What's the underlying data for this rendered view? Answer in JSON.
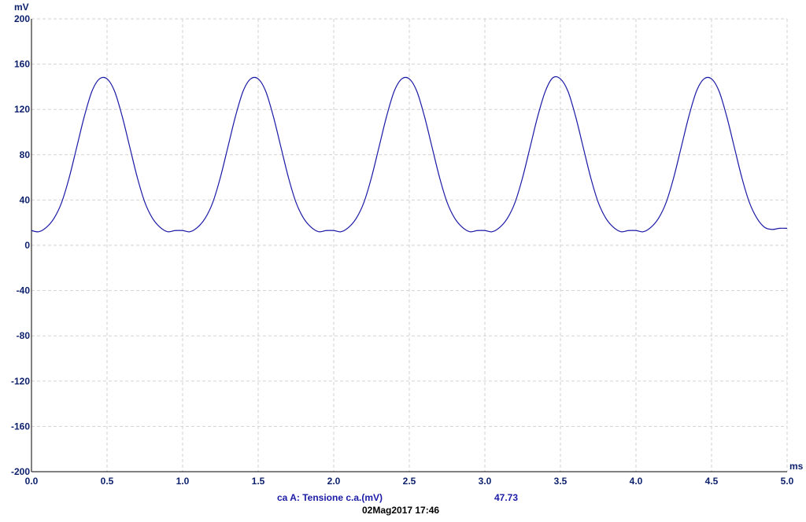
{
  "chart_data": {
    "type": "line",
    "ylabel": "mV",
    "xlabel": "ms",
    "ylim": [
      -200,
      200
    ],
    "xlim": [
      0,
      5
    ],
    "grid": true,
    "y_ticks": [
      "200",
      "160",
      "120",
      "80",
      "40",
      "0",
      "-40",
      "-80",
      "-120",
      "-160",
      "-200"
    ],
    "x_ticks": [
      "0.0",
      "0.5",
      "1.0",
      "1.5",
      "2.0",
      "2.5",
      "3.0",
      "3.5",
      "4.0",
      "4.5",
      "5.0"
    ],
    "series": [
      {
        "name": "ca A: Tensione c.a.(mV)",
        "x": [
          0,
          0.05,
          0.1,
          0.15,
          0.2,
          0.25,
          0.3,
          0.35,
          0.4,
          0.45,
          0.5,
          0.55,
          0.6,
          0.65,
          0.7,
          0.75,
          0.8,
          0.85,
          0.9,
          0.95,
          1.0,
          1.05,
          1.1,
          1.15,
          1.2,
          1.25,
          1.3,
          1.35,
          1.4,
          1.45,
          1.5,
          1.55,
          1.6,
          1.65,
          1.7,
          1.75,
          1.8,
          1.85,
          1.9,
          1.95,
          2.0,
          2.05,
          2.1,
          2.15,
          2.2,
          2.25,
          2.3,
          2.35,
          2.4,
          2.45,
          2.5,
          2.55,
          2.6,
          2.65,
          2.7,
          2.75,
          2.8,
          2.85,
          2.9,
          2.95,
          3.0,
          3.05,
          3.1,
          3.15,
          3.2,
          3.25,
          3.3,
          3.35,
          3.4,
          3.45,
          3.5,
          3.55,
          3.6,
          3.65,
          3.7,
          3.75,
          3.8,
          3.85,
          3.9,
          3.95,
          4.0,
          4.05,
          4.1,
          4.15,
          4.2,
          4.25,
          4.3,
          4.35,
          4.4,
          4.45,
          4.5,
          4.55,
          4.6,
          4.65,
          4.7,
          4.75,
          4.8,
          4.85,
          4.9,
          4.95,
          5.0
        ],
        "y": [
          13,
          12,
          16,
          24,
          38,
          60,
          87,
          114,
          136,
          147,
          147,
          136,
          114,
          87,
          60,
          38,
          24,
          16,
          12,
          13,
          13,
          12,
          16,
          24,
          38,
          60,
          87,
          114,
          136,
          147,
          147,
          136,
          114,
          87,
          60,
          38,
          24,
          16,
          12,
          13,
          13,
          12,
          16,
          24,
          38,
          60,
          87,
          114,
          136,
          147,
          147,
          136,
          114,
          87,
          60,
          38,
          24,
          16,
          12,
          13,
          13,
          12,
          16,
          24,
          38,
          60,
          87,
          114,
          136,
          148,
          147,
          136,
          114,
          87,
          60,
          38,
          24,
          16,
          12,
          13,
          13,
          12,
          16,
          24,
          38,
          60,
          87,
          114,
          136,
          147,
          147,
          136,
          114,
          87,
          60,
          38,
          24,
          16,
          14,
          15,
          15
        ]
      }
    ],
    "readout_value": "47.73"
  },
  "footer": {
    "channel_label": "ca A: Tensione c.a.(mV)",
    "value": "47.73",
    "timestamp": "02Mag2017  17:46"
  },
  "colors": {
    "trace": "#1a1aa6",
    "labels": "#0c1f6b",
    "grid": "#d2d2d2",
    "axes": "#000000"
  }
}
